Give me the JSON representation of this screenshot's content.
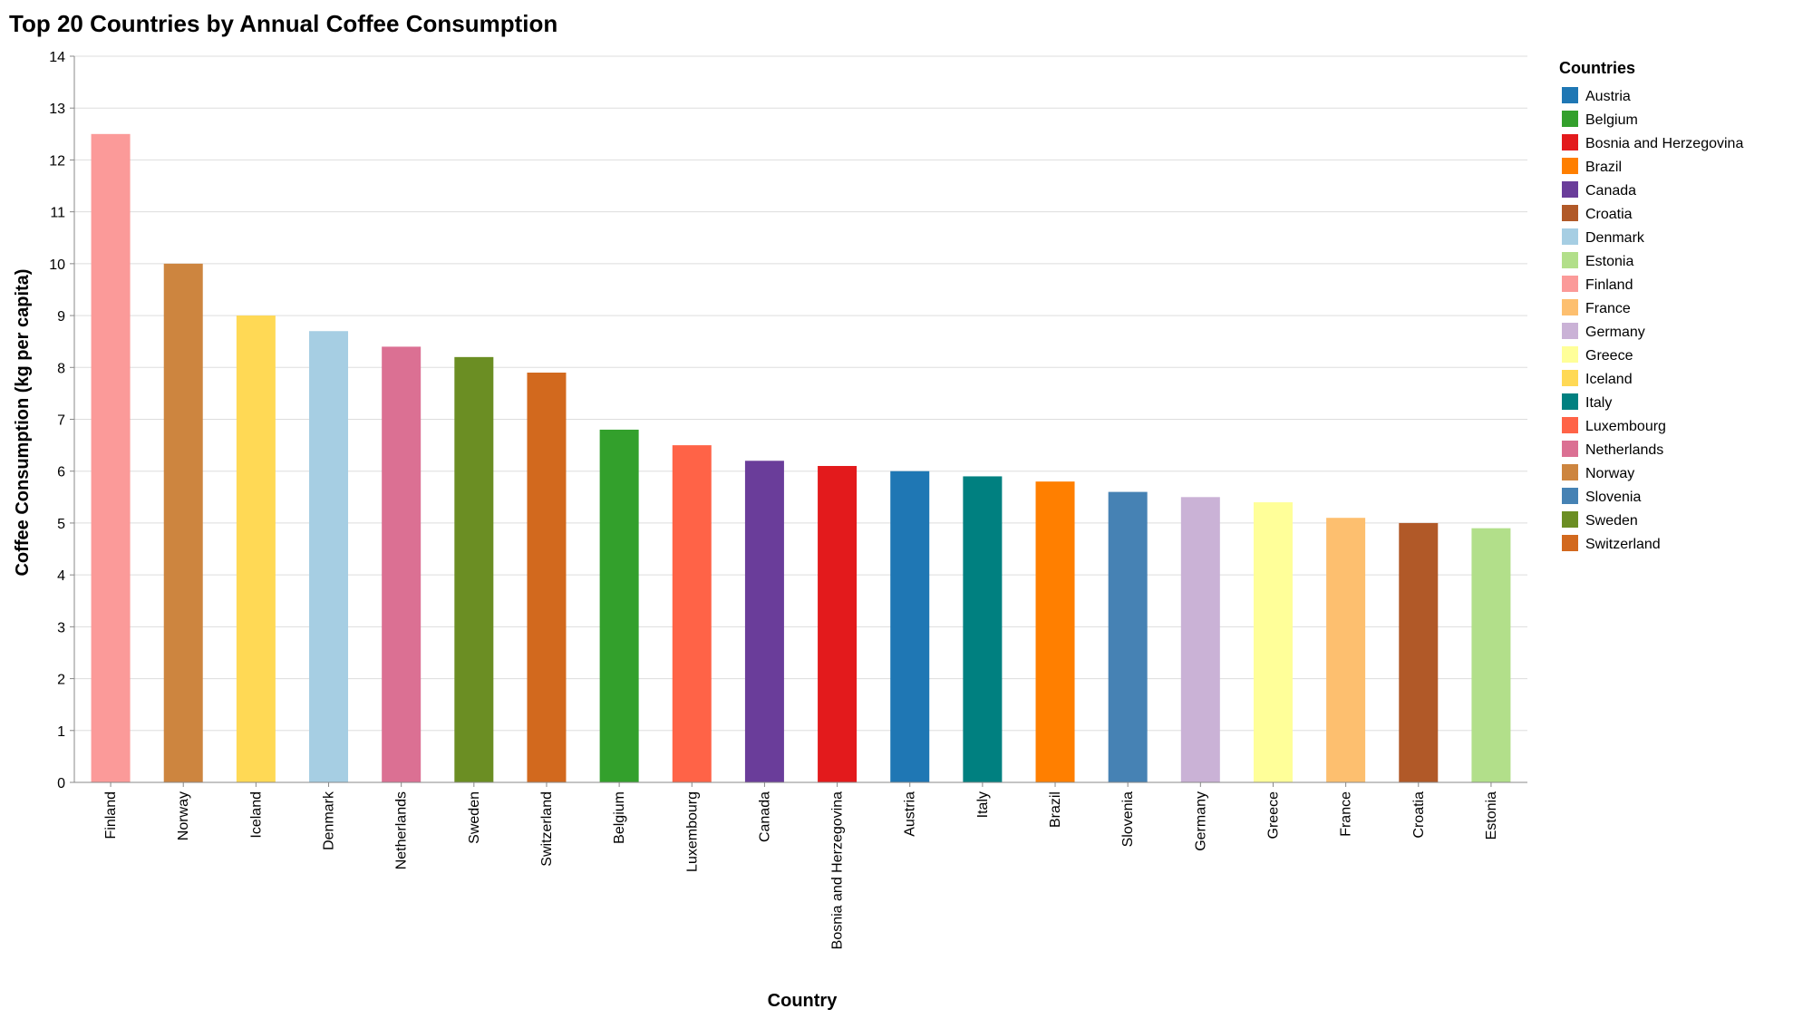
{
  "chart_data": {
    "type": "bar",
    "title": "Top 20 Countries by Annual Coffee Consumption",
    "xlabel": "Country",
    "ylabel": "Coffee Consumption (kg per capita)",
    "ylim": [
      0,
      14
    ],
    "yticks": [
      0,
      1,
      2,
      3,
      4,
      5,
      6,
      7,
      8,
      9,
      10,
      11,
      12,
      13,
      14
    ],
    "grid": true,
    "legend_position": "right",
    "legend_title": "Countries",
    "categories": [
      "Finland",
      "Norway",
      "Iceland",
      "Denmark",
      "Netherlands",
      "Sweden",
      "Switzerland",
      "Belgium",
      "Luxembourg",
      "Canada",
      "Bosnia and Herzegovina",
      "Austria",
      "Italy",
      "Brazil",
      "Slovenia",
      "Germany",
      "Greece",
      "France",
      "Croatia",
      "Estonia"
    ],
    "values": [
      12.5,
      10.0,
      9.0,
      8.7,
      8.4,
      8.2,
      7.9,
      6.8,
      6.5,
      6.2,
      6.1,
      6.0,
      5.9,
      5.8,
      5.6,
      5.5,
      5.4,
      5.1,
      5.0,
      4.9
    ],
    "colors": {
      "Austria": "#1f77b4",
      "Belgium": "#33a02c",
      "Bosnia and Herzegovina": "#e31a1c",
      "Brazil": "#ff7f00",
      "Canada": "#6a3d9a",
      "Croatia": "#b15928",
      "Denmark": "#a6cee3",
      "Estonia": "#b2df8a",
      "Finland": "#fb9a99",
      "France": "#fdbf6f",
      "Germany": "#cab2d6",
      "Greece": "#ffff99",
      "Iceland": "#ffd955",
      "Italy": "#008080",
      "Luxembourg": "#ff6347",
      "Netherlands": "#db7093",
      "Norway": "#cd853f",
      "Slovenia": "#4682b4",
      "Sweden": "#6b8e23",
      "Switzerland": "#d2691e"
    },
    "legend": [
      "Austria",
      "Belgium",
      "Bosnia and Herzegovina",
      "Brazil",
      "Canada",
      "Croatia",
      "Denmark",
      "Estonia",
      "Finland",
      "France",
      "Germany",
      "Greece",
      "Iceland",
      "Italy",
      "Luxembourg",
      "Netherlands",
      "Norway",
      "Slovenia",
      "Sweden",
      "Switzerland"
    ]
  }
}
